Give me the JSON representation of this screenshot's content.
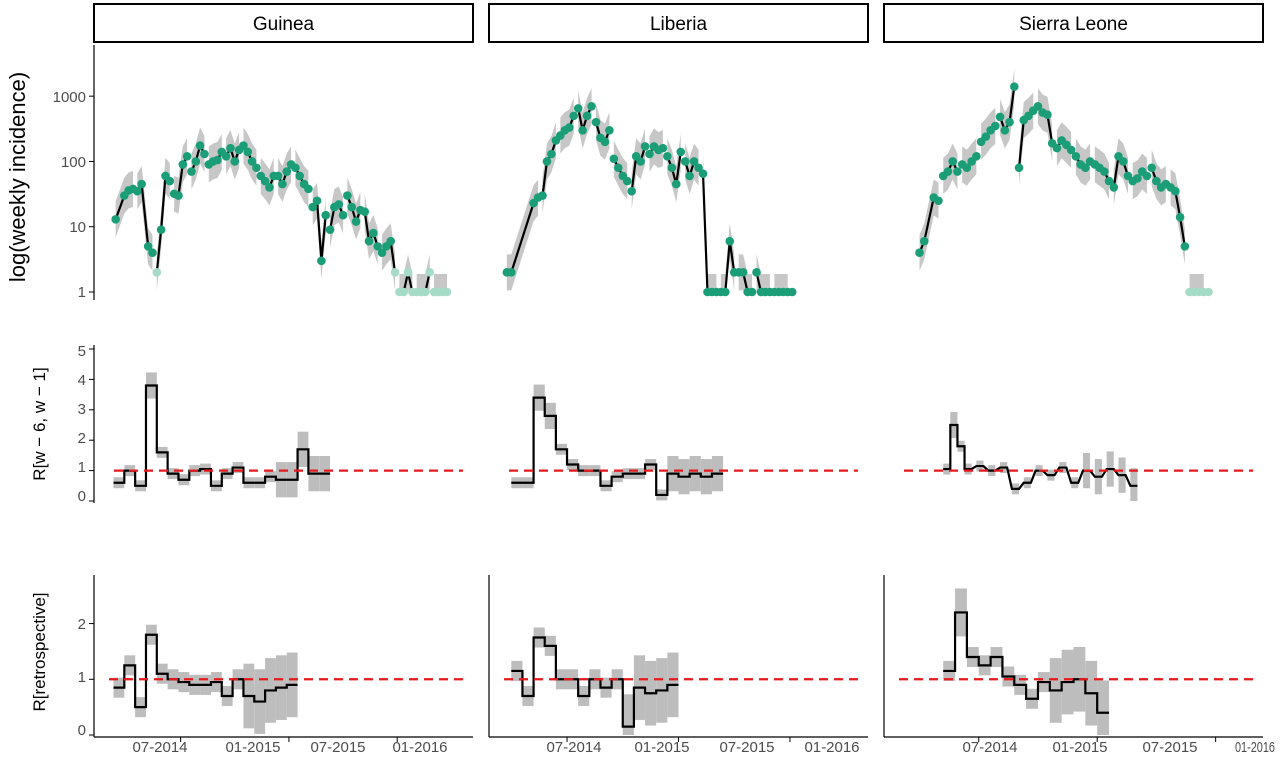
{
  "chart_data": {
    "type": "faceted-timeseries",
    "facets": [
      "Guinea",
      "Liberia",
      "Sierra Leone"
    ],
    "rows": [
      {
        "id": "incidence",
        "ylabel": "log(weekly incidence)",
        "scale": "log10",
        "yticks": [
          1,
          10,
          100,
          1000
        ]
      },
      {
        "id": "r_window",
        "ylabel": "R[w − 6, w − 1]",
        "scale": "linear",
        "yticks": [
          0,
          1,
          2,
          3,
          4,
          5
        ],
        "reference_line": 1
      },
      {
        "id": "r_retro",
        "ylabel": "R[retrospective]",
        "scale": "linear",
        "yticks": [
          0,
          1,
          2
        ],
        "reference_line": 1
      }
    ],
    "x_tick_labels": [
      "07-2014",
      "01-2015",
      "07-2015",
      "01-2016"
    ],
    "x_tick_labels_sierra_leone": [
      "07-2014",
      "01-2015",
      "07-2015",
      "01-2016"
    ],
    "colors": {
      "observed": "#1b9e77",
      "observed_light": "#a6dbc8",
      "ribbon": "#bdbdbd",
      "line": "#000000",
      "reference": "#e41a1c"
    },
    "incidence": {
      "Guinea": {
        "observed": [
          [
            2014.2,
            13
          ],
          [
            2014.24,
            30
          ],
          [
            2014.26,
            36
          ],
          [
            2014.28,
            38
          ],
          [
            2014.3,
            35
          ],
          [
            2014.32,
            45
          ],
          [
            2014.35,
            5
          ],
          [
            2014.37,
            4
          ],
          [
            2014.39,
            2
          ],
          [
            2014.41,
            9
          ],
          [
            2014.43,
            60
          ],
          [
            2014.45,
            50
          ],
          [
            2014.47,
            32
          ],
          [
            2014.49,
            30
          ],
          [
            2014.51,
            90
          ],
          [
            2014.53,
            120
          ],
          [
            2014.55,
            70
          ],
          [
            2014.57,
            100
          ],
          [
            2014.59,
            175
          ],
          [
            2014.61,
            130
          ],
          [
            2014.63,
            90
          ],
          [
            2014.65,
            100
          ],
          [
            2014.67,
            105
          ],
          [
            2014.69,
            140
          ],
          [
            2014.71,
            120
          ],
          [
            2014.73,
            160
          ],
          [
            2014.75,
            100
          ],
          [
            2014.77,
            150
          ],
          [
            2014.79,
            175
          ],
          [
            2014.81,
            140
          ],
          [
            2014.83,
            100
          ],
          [
            2014.85,
            80
          ],
          [
            2014.87,
            60
          ],
          [
            2014.89,
            50
          ],
          [
            2014.91,
            40
          ],
          [
            2014.93,
            60
          ],
          [
            2014.95,
            60
          ],
          [
            2014.97,
            45
          ],
          [
            2014.99,
            70
          ],
          [
            2015.01,
            90
          ],
          [
            2015.03,
            80
          ],
          [
            2015.05,
            60
          ],
          [
            2015.07,
            45
          ],
          [
            2015.09,
            38
          ],
          [
            2015.11,
            20
          ],
          [
            2015.13,
            25
          ],
          [
            2015.15,
            3
          ],
          [
            2015.17,
            15
          ],
          [
            2015.19,
            9
          ],
          [
            2015.21,
            20
          ],
          [
            2015.23,
            22
          ],
          [
            2015.25,
            15
          ],
          [
            2015.27,
            30
          ],
          [
            2015.29,
            20
          ],
          [
            2015.31,
            12
          ],
          [
            2015.33,
            18
          ],
          [
            2015.35,
            17
          ],
          [
            2015.37,
            6
          ],
          [
            2015.39,
            8
          ],
          [
            2015.41,
            5
          ],
          [
            2015.43,
            4
          ],
          [
            2015.45,
            5
          ],
          [
            2015.47,
            6
          ],
          [
            2015.49,
            2
          ],
          [
            2015.51,
            1
          ],
          [
            2015.53,
            1
          ],
          [
            2015.55,
            2
          ],
          [
            2015.57,
            1
          ],
          [
            2015.59,
            1
          ],
          [
            2015.61,
            1
          ],
          [
            2015.63,
            1
          ],
          [
            2015.65,
            2
          ],
          [
            2015.67,
            1
          ],
          [
            2015.69,
            1
          ],
          [
            2015.71,
            1
          ],
          [
            2015.73,
            1
          ]
        ]
      },
      "Liberia": {
        "observed": [
          [
            2014.23,
            2
          ],
          [
            2014.25,
            2
          ],
          [
            2014.35,
            23
          ],
          [
            2014.37,
            28
          ],
          [
            2014.39,
            30
          ],
          [
            2014.41,
            100
          ],
          [
            2014.43,
            130
          ],
          [
            2014.45,
            210
          ],
          [
            2014.47,
            250
          ],
          [
            2014.49,
            300
          ],
          [
            2014.51,
            330
          ],
          [
            2014.53,
            500
          ],
          [
            2014.55,
            650
          ],
          [
            2014.57,
            300
          ],
          [
            2014.59,
            500
          ],
          [
            2014.61,
            700
          ],
          [
            2014.63,
            400
          ],
          [
            2014.65,
            230
          ],
          [
            2014.67,
            200
          ],
          [
            2014.69,
            300
          ],
          [
            2014.71,
            110
          ],
          [
            2014.73,
            80
          ],
          [
            2014.75,
            60
          ],
          [
            2014.77,
            50
          ],
          [
            2014.79,
            35
          ],
          [
            2014.81,
            120
          ],
          [
            2014.83,
            100
          ],
          [
            2014.85,
            170
          ],
          [
            2014.87,
            130
          ],
          [
            2014.89,
            170
          ],
          [
            2014.91,
            150
          ],
          [
            2014.93,
            160
          ],
          [
            2014.95,
            120
          ],
          [
            2014.97,
            80
          ],
          [
            2014.99,
            45
          ],
          [
            2015.01,
            140
          ],
          [
            2015.03,
            100
          ],
          [
            2015.05,
            60
          ],
          [
            2015.07,
            100
          ],
          [
            2015.09,
            80
          ],
          [
            2015.11,
            65
          ],
          [
            2015.13,
            1
          ],
          [
            2015.15,
            1
          ],
          [
            2015.17,
            1
          ],
          [
            2015.19,
            1
          ],
          [
            2015.21,
            1
          ],
          [
            2015.23,
            6
          ],
          [
            2015.25,
            2
          ],
          [
            2015.27,
            2
          ],
          [
            2015.29,
            2
          ],
          [
            2015.31,
            1
          ],
          [
            2015.33,
            1
          ],
          [
            2015.35,
            2
          ],
          [
            2015.37,
            1
          ],
          [
            2015.39,
            1
          ],
          [
            2015.41,
            1
          ],
          [
            2015.43,
            1
          ],
          [
            2015.45,
            1
          ],
          [
            2015.47,
            1
          ],
          [
            2015.49,
            1
          ],
          [
            2015.51,
            1
          ]
        ]
      },
      "Sierra Leone": {
        "observed": [
          [
            2014.25,
            4
          ],
          [
            2014.27,
            6
          ],
          [
            2014.31,
            28
          ],
          [
            2014.33,
            25
          ],
          [
            2014.35,
            60
          ],
          [
            2014.37,
            70
          ],
          [
            2014.39,
            100
          ],
          [
            2014.41,
            70
          ],
          [
            2014.43,
            90
          ],
          [
            2014.45,
            80
          ],
          [
            2014.47,
            100
          ],
          [
            2014.49,
            120
          ],
          [
            2014.51,
            200
          ],
          [
            2014.53,
            240
          ],
          [
            2014.55,
            300
          ],
          [
            2014.57,
            350
          ],
          [
            2014.59,
            480
          ],
          [
            2014.61,
            300
          ],
          [
            2014.63,
            400
          ],
          [
            2014.65,
            1400
          ],
          [
            2014.67,
            80
          ],
          [
            2014.69,
            430
          ],
          [
            2014.71,
            500
          ],
          [
            2014.73,
            600
          ],
          [
            2014.75,
            700
          ],
          [
            2014.77,
            560
          ],
          [
            2014.79,
            520
          ],
          [
            2014.81,
            190
          ],
          [
            2014.83,
            160
          ],
          [
            2014.85,
            210
          ],
          [
            2014.87,
            180
          ],
          [
            2014.89,
            150
          ],
          [
            2014.91,
            120
          ],
          [
            2014.93,
            90
          ],
          [
            2014.95,
            80
          ],
          [
            2014.97,
            100
          ],
          [
            2014.99,
            90
          ],
          [
            2015.01,
            80
          ],
          [
            2015.03,
            70
          ],
          [
            2015.05,
            50
          ],
          [
            2015.07,
            40
          ],
          [
            2015.09,
            120
          ],
          [
            2015.11,
            100
          ],
          [
            2015.13,
            60
          ],
          [
            2015.15,
            50
          ],
          [
            2015.17,
            55
          ],
          [
            2015.19,
            70
          ],
          [
            2015.21,
            60
          ],
          [
            2015.23,
            80
          ],
          [
            2015.25,
            50
          ],
          [
            2015.27,
            40
          ],
          [
            2015.29,
            45
          ],
          [
            2015.31,
            40
          ],
          [
            2015.33,
            35
          ],
          [
            2015.35,
            14
          ],
          [
            2015.37,
            5
          ],
          [
            2015.39,
            1
          ],
          [
            2015.41,
            1
          ],
          [
            2015.43,
            1
          ],
          [
            2015.45,
            1
          ],
          [
            2015.47,
            1
          ]
        ]
      }
    },
    "r_window": {
      "Guinea": [
        [
          2014.19,
          0.6
        ],
        [
          2014.24,
          1.0
        ],
        [
          2014.29,
          0.5
        ],
        [
          2014.34,
          3.8
        ],
        [
          2014.39,
          1.6
        ],
        [
          2014.44,
          0.9
        ],
        [
          2014.49,
          0.7
        ],
        [
          2014.54,
          1.0
        ],
        [
          2014.59,
          1.05
        ],
        [
          2014.64,
          0.5
        ],
        [
          2014.69,
          0.9
        ],
        [
          2014.74,
          1.1
        ],
        [
          2014.79,
          0.6
        ],
        [
          2014.84,
          0.6
        ],
        [
          2014.89,
          0.8
        ],
        [
          2014.94,
          0.7
        ],
        [
          2014.99,
          0.7
        ],
        [
          2015.04,
          1.7
        ],
        [
          2015.09,
          0.9
        ],
        [
          2015.14,
          0.9
        ]
      ],
      "Liberia": [
        [
          2014.25,
          0.6
        ],
        [
          2014.3,
          0.6
        ],
        [
          2014.35,
          3.4
        ],
        [
          2014.4,
          2.8
        ],
        [
          2014.45,
          1.7
        ],
        [
          2014.5,
          1.2
        ],
        [
          2014.55,
          1.0
        ],
        [
          2014.6,
          1.0
        ],
        [
          2014.65,
          0.5
        ],
        [
          2014.7,
          0.8
        ],
        [
          2014.75,
          0.9
        ],
        [
          2014.8,
          0.9
        ],
        [
          2014.85,
          1.2
        ],
        [
          2014.9,
          0.2
        ],
        [
          2014.95,
          0.9
        ],
        [
          2015.0,
          0.8
        ],
        [
          2015.05,
          0.9
        ],
        [
          2015.1,
          0.8
        ],
        [
          2015.15,
          0.9
        ]
      ],
      "Sierra Leone": [
        [
          2014.35,
          1.05
        ],
        [
          2014.38,
          2.5
        ],
        [
          2014.41,
          1.8
        ],
        [
          2014.44,
          1.05
        ],
        [
          2014.49,
          1.15
        ],
        [
          2014.54,
          1.0
        ],
        [
          2014.59,
          1.1
        ],
        [
          2014.64,
          0.4
        ],
        [
          2014.69,
          0.6
        ],
        [
          2014.74,
          1.0
        ],
        [
          2014.79,
          0.85
        ],
        [
          2014.84,
          1.1
        ],
        [
          2014.89,
          0.6
        ],
        [
          2014.94,
          1.0
        ],
        [
          2014.99,
          0.8
        ],
        [
          2015.04,
          1.05
        ],
        [
          2015.09,
          0.85
        ],
        [
          2015.14,
          0.5
        ]
      ]
    },
    "r_retro": {
      "Guinea": [
        [
          2014.19,
          0.85
        ],
        [
          2014.24,
          1.25
        ],
        [
          2014.29,
          0.5
        ],
        [
          2014.34,
          1.8
        ],
        [
          2014.39,
          1.1
        ],
        [
          2014.44,
          1.0
        ],
        [
          2014.49,
          0.95
        ],
        [
          2014.54,
          0.9
        ],
        [
          2014.59,
          0.9
        ],
        [
          2014.64,
          0.95
        ],
        [
          2014.69,
          0.7
        ],
        [
          2014.74,
          1.0
        ],
        [
          2014.79,
          0.7
        ],
        [
          2014.84,
          0.6
        ],
        [
          2014.89,
          0.8
        ],
        [
          2014.94,
          0.85
        ],
        [
          2014.99,
          0.9
        ]
      ],
      "Liberia": [
        [
          2014.25,
          1.15
        ],
        [
          2014.3,
          0.7
        ],
        [
          2014.35,
          1.75
        ],
        [
          2014.4,
          1.6
        ],
        [
          2014.45,
          1.0
        ],
        [
          2014.5,
          1.0
        ],
        [
          2014.55,
          0.7
        ],
        [
          2014.6,
          1.0
        ],
        [
          2014.65,
          0.85
        ],
        [
          2014.7,
          1.0
        ],
        [
          2014.75,
          0.15
        ],
        [
          2014.8,
          0.85
        ],
        [
          2014.85,
          0.75
        ],
        [
          2014.9,
          0.8
        ],
        [
          2014.95,
          0.9
        ]
      ],
      "Sierra Leone": [
        [
          2014.35,
          1.15
        ],
        [
          2014.4,
          2.2
        ],
        [
          2014.45,
          1.4
        ],
        [
          2014.5,
          1.25
        ],
        [
          2014.55,
          1.4
        ],
        [
          2014.6,
          1.05
        ],
        [
          2014.65,
          0.9
        ],
        [
          2014.7,
          0.65
        ],
        [
          2014.75,
          0.95
        ],
        [
          2014.8,
          0.8
        ],
        [
          2014.85,
          0.95
        ],
        [
          2014.9,
          1.0
        ],
        [
          2014.95,
          0.75
        ],
        [
          2015.0,
          0.4
        ]
      ]
    }
  }
}
